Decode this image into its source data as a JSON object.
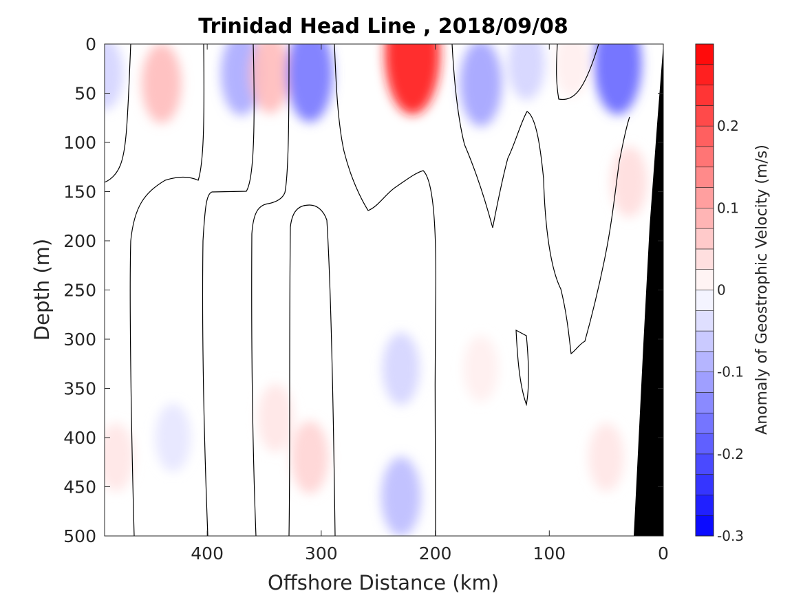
{
  "chart_data": {
    "type": "contour",
    "title": "Trinidad Head Line , 2018/09/08",
    "xlabel": "Offshore Distance (km)",
    "ylabel": "Depth (m)",
    "x_reversed": true,
    "y_reversed": true,
    "xlim": [
      490,
      0
    ],
    "ylim": [
      0,
      500
    ],
    "xticks": [
      400,
      300,
      200,
      100,
      0
    ],
    "yticks": [
      0,
      50,
      100,
      150,
      200,
      250,
      300,
      350,
      400,
      450,
      500
    ],
    "colorbar": {
      "label": "Anomaly of Geostrophic Velocity (m/s)",
      "range": [
        -0.3,
        0.3
      ],
      "levels": 24,
      "ticks": [
        0.2,
        0.1,
        0,
        -0.1,
        -0.2,
        -0.3
      ],
      "colormap": "blue-white-red",
      "low_color": "#0000ff",
      "high_color": "#ff0000"
    },
    "zero_contour_color": "#000000",
    "bathymetry_color": "#000000",
    "features": [
      {
        "x": 490,
        "depth": 30,
        "value": -0.05
      },
      {
        "x": 440,
        "depth": 40,
        "value": 0.08
      },
      {
        "x": 370,
        "depth": 30,
        "value": -0.1
      },
      {
        "x": 345,
        "depth": 30,
        "value": 0.08
      },
      {
        "x": 310,
        "depth": 30,
        "value": -0.16
      },
      {
        "x": 220,
        "depth": 10,
        "value": 0.27
      },
      {
        "x": 160,
        "depth": 40,
        "value": -0.11
      },
      {
        "x": 120,
        "depth": 20,
        "value": -0.05
      },
      {
        "x": 80,
        "depth": 20,
        "value": 0.02
      },
      {
        "x": 40,
        "depth": 20,
        "value": -0.18
      },
      {
        "x": 30,
        "depth": 140,
        "value": 0.04
      },
      {
        "x": 230,
        "depth": 460,
        "value": -0.08
      },
      {
        "x": 230,
        "depth": 330,
        "value": -0.05
      },
      {
        "x": 310,
        "depth": 420,
        "value": 0.05
      },
      {
        "x": 340,
        "depth": 380,
        "value": 0.03
      },
      {
        "x": 430,
        "depth": 400,
        "value": -0.03
      },
      {
        "x": 160,
        "depth": 330,
        "value": 0.02
      },
      {
        "x": 50,
        "depth": 420,
        "value": 0.03
      },
      {
        "x": 480,
        "depth": 420,
        "value": 0.03
      }
    ]
  }
}
